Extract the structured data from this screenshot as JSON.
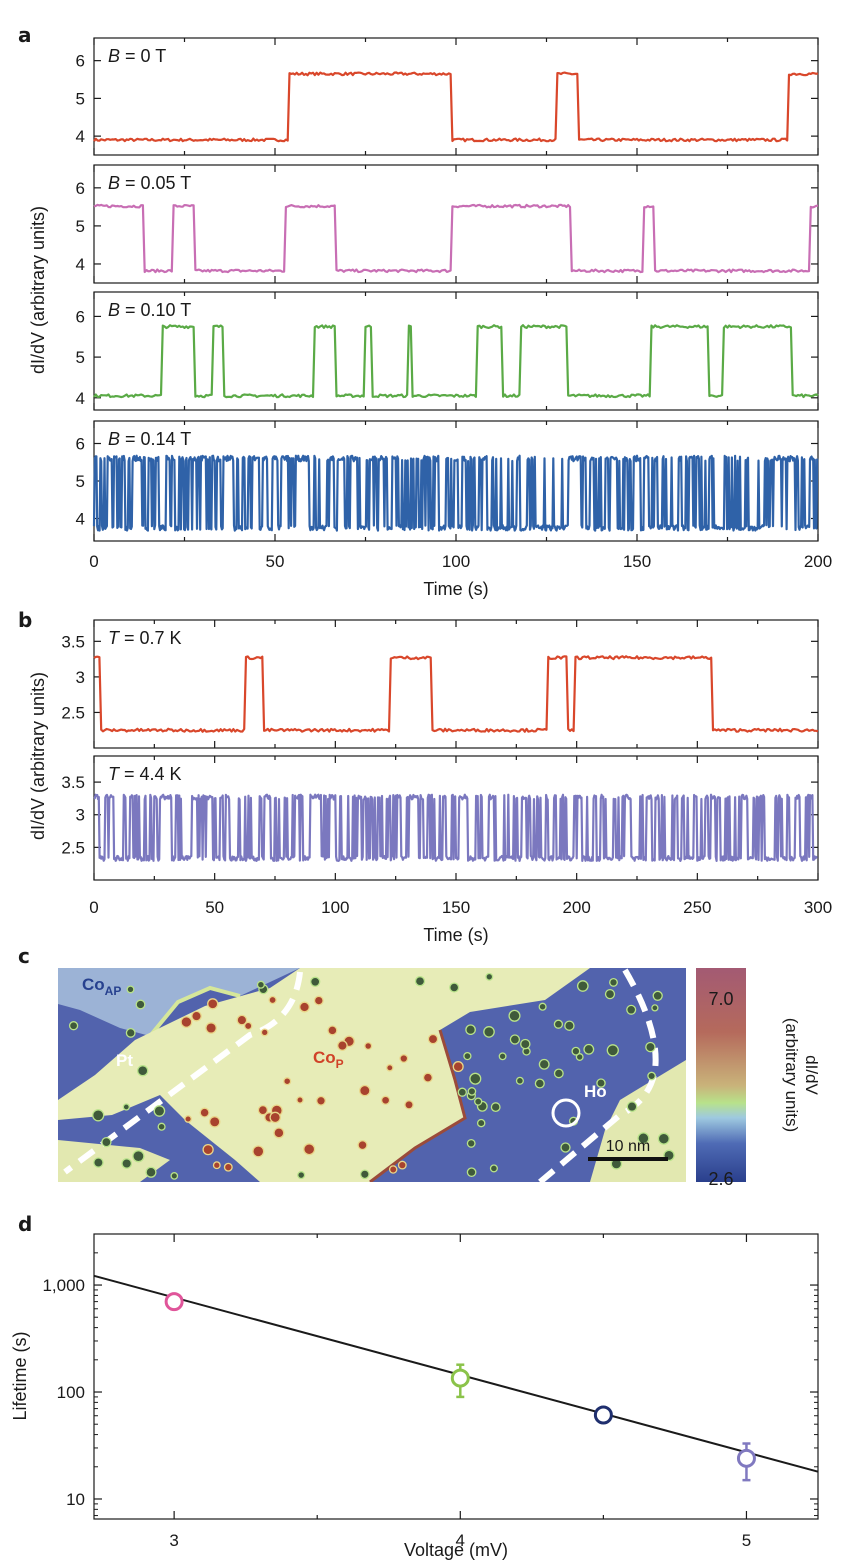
{
  "panels": {
    "a": {
      "letter": "a",
      "ylabel": "dI/dV (arbitrary units)",
      "xlabel": "Time (s)",
      "x_ticks": [
        "0",
        "50",
        "100",
        "150",
        "200"
      ],
      "y_ticks": [
        "4",
        "5",
        "6"
      ]
    },
    "b": {
      "letter": "b",
      "ylabel": "dI/dV (arbitrary units)",
      "xlabel": "Time (s)",
      "x_ticks": [
        "0",
        "50",
        "100",
        "150",
        "200",
        "250",
        "300"
      ],
      "y_ticks": [
        "2.5",
        "3.0",
        "3.5"
      ]
    },
    "c": {
      "letter": "c",
      "labels": {
        "co_ap": "Co",
        "co_ap_sub": "AP",
        "pt": "Pt",
        "co_p": "Co",
        "co_p_sub": "P",
        "ho": "Ho"
      },
      "scalebar": "10 nm",
      "colorbar_max": "7.0",
      "colorbar_min": "2.6",
      "colorbar_label_1": "dI/dV",
      "colorbar_label_2": "(arbitrary units)"
    },
    "d": {
      "letter": "d",
      "ylabel": "Lifetime (s)",
      "xlabel": "Voltage (mV)",
      "x_ticks": [
        "3",
        "4",
        "5"
      ],
      "y_ticks": [
        "10",
        "100",
        "1,000"
      ]
    }
  },
  "colors": {
    "red": "#d9472b",
    "magenta": "#c86eb4",
    "green": "#5aaa46",
    "blue": "#2f62a8",
    "purple": "#7b78bf",
    "fit_line": "#1a1a1a",
    "point_pink": "#e0559a",
    "point_green": "#8bc34a",
    "point_navy": "#1f2f6e",
    "point_purple": "#8079c0"
  },
  "chart_data": [
    {
      "type": "line",
      "panel": "a",
      "label": "B = 0 T",
      "label_var": "B",
      "label_rest": " = 0 T",
      "color": "#d9472b",
      "xlim": [
        0,
        200
      ],
      "ylim": [
        3.5,
        6.6
      ],
      "levels": [
        3.9,
        5.65
      ],
      "init_high": false,
      "switch_times": [
        54,
        99,
        128,
        134,
        192
      ]
    },
    {
      "type": "line",
      "panel": "a",
      "label": "B = 0.05 T",
      "label_var": "B",
      "label_rest": " = 0.05 T",
      "color": "#c86eb4",
      "xlim": [
        0,
        200
      ],
      "ylim": [
        3.5,
        6.6
      ],
      "levels": [
        3.82,
        5.52
      ],
      "init_high": true,
      "switch_times": [
        14,
        22,
        28,
        53,
        67,
        99,
        132,
        152,
        155,
        198
      ]
    },
    {
      "type": "line",
      "panel": "a",
      "label": "B = 0.10 T",
      "label_var": "B",
      "label_rest": " = 0.10 T",
      "color": "#5aaa46",
      "xlim": [
        0,
        200
      ],
      "ylim": [
        3.7,
        6.6
      ],
      "levels": [
        4.05,
        5.75
      ],
      "init_high": false,
      "switch_times": [
        19,
        28,
        33,
        36,
        61,
        67,
        75,
        77,
        87,
        87.6,
        106,
        113,
        118,
        131,
        154,
        170,
        174,
        193
      ]
    },
    {
      "type": "line",
      "panel": "a",
      "label": "B = 0.14 T",
      "label_var": "B",
      "label_rest": " = 0.14 T",
      "color": "#2f62a8",
      "xlim": [
        0,
        200
      ],
      "ylim": [
        3.4,
        6.6
      ],
      "levels": [
        3.75,
        5.6
      ],
      "init_high": false,
      "telegraph_rate": 0.45
    },
    {
      "type": "line",
      "panel": "b",
      "label": "T = 0.7 K",
      "label_var": "T",
      "label_rest": " = 0.7 K",
      "color": "#d9472b",
      "xlim": [
        0,
        300
      ],
      "ylim": [
        2.0,
        3.8
      ],
      "levels": [
        2.25,
        3.27
      ],
      "init_high": true,
      "switch_times": [
        3,
        63,
        70,
        123,
        140,
        188,
        196,
        199,
        256
      ]
    },
    {
      "type": "line",
      "panel": "b",
      "label": "T = 4.4 K",
      "label_var": "T",
      "label_rest": " = 4.4 K",
      "color": "#7b78bf",
      "xlim": [
        0,
        300
      ],
      "ylim": [
        2.0,
        3.9
      ],
      "levels": [
        2.33,
        3.27
      ],
      "init_high": false,
      "telegraph_rate": 0.3
    },
    {
      "type": "scatter",
      "panel": "d",
      "xlim": [
        2.72,
        5.25
      ],
      "ylim": [
        6.5,
        3000
      ],
      "yscale": "log",
      "points": [
        {
          "x": 3.0,
          "y": 700,
          "err": 0,
          "color": "#e0559a"
        },
        {
          "x": 4.0,
          "y": 135,
          "err": 45,
          "color": "#8bc34a"
        },
        {
          "x": 4.5,
          "y": 61,
          "err": 0,
          "color": "#1f2f6e"
        },
        {
          "x": 5.0,
          "y": 24,
          "err": 9,
          "color": "#8079c0"
        }
      ],
      "fit_line": {
        "x": [
          2.72,
          5.25
        ],
        "y": [
          1220,
          18
        ]
      }
    }
  ]
}
